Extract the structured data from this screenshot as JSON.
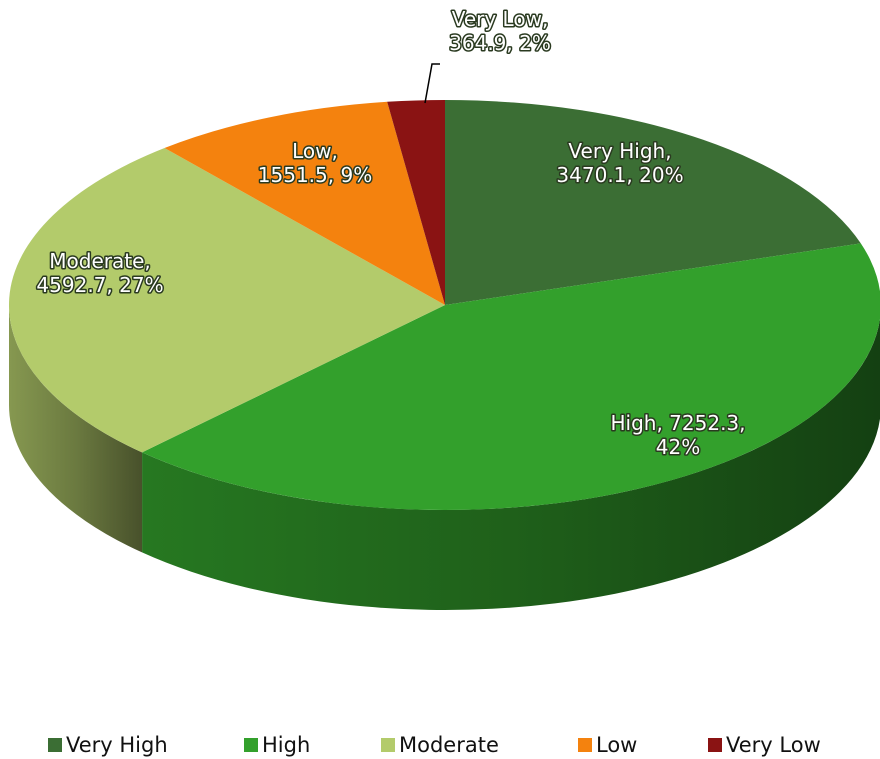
{
  "chart_data": {
    "type": "pie3d",
    "categories": [
      "Very High",
      "High",
      "Moderate",
      "Low",
      "Very Low"
    ],
    "values": [
      3470.1,
      7252.3,
      4592.7,
      1551.5,
      364.9
    ],
    "value_labels": [
      "Very High,\n3470.1, 20%",
      "High, 7252.3,\n42%",
      "Moderate,\n4592.7, 27%",
      "Low,\n1551.5, 9%",
      "Very Low,\n364.9, 2%"
    ],
    "colors": [
      "#3b6e34",
      "#33a02c",
      "#b3cb6b",
      "#f4820e",
      "#8a1313"
    ],
    "legend": "bottom"
  }
}
